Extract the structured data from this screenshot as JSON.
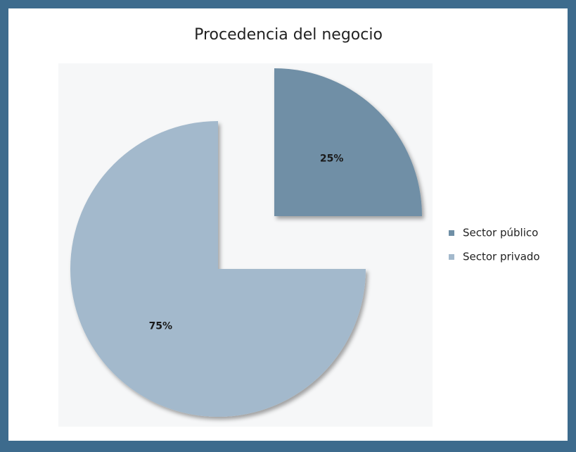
{
  "chart_data": {
    "type": "pie",
    "title": "Procedencia del negocio",
    "categories": [
      "Sector público",
      "Sector privado"
    ],
    "values": [
      25,
      75
    ],
    "value_labels": [
      "25%",
      "75%"
    ],
    "colors": [
      "#6f8fa6",
      "#a3b9cc"
    ],
    "legend": "right"
  }
}
